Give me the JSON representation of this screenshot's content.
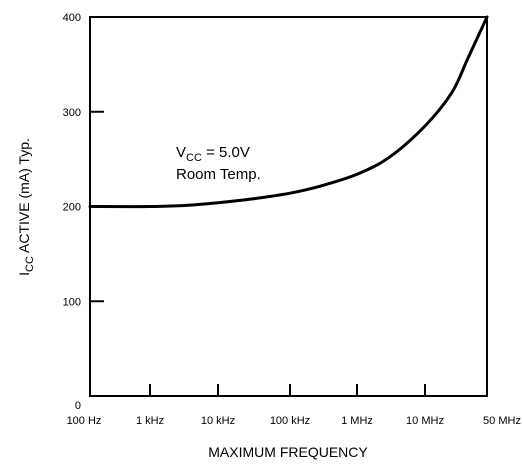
{
  "chart_data": {
    "type": "line",
    "title": "",
    "xlabel": "MAXIMUM FREQUENCY",
    "ylabel": {
      "main": "I",
      "sub": "CC",
      "rest": "  ACTIVE (mA) Typ."
    },
    "x_scale": "log",
    "x_ticks": [
      "100 Hz",
      "1 kHz",
      "10 kHz",
      "100 kHz",
      "1 MHz",
      "10 MHz",
      "50 MHz"
    ],
    "x_tick_hz": [
      100,
      1000,
      10000,
      100000,
      1000000,
      10000000,
      50000000
    ],
    "ylim": [
      0,
      400
    ],
    "y_ticks": [
      0,
      100,
      200,
      300,
      400
    ],
    "grid": false,
    "series": [
      {
        "x": [
          100,
          1000,
          3000,
          10000,
          30000,
          100000,
          300000,
          1000000,
          3000000,
          10000000,
          20000000,
          30000000,
          50000000
        ],
        "values": [
          200,
          200,
          201,
          204,
          208,
          214,
          222,
          234,
          252,
          285,
          320,
          355,
          400
        ]
      }
    ],
    "annotations": [
      {
        "main": "V",
        "sub": "CC",
        "rest": " = 5.0V"
      },
      {
        "text": "Room Temp."
      }
    ]
  }
}
